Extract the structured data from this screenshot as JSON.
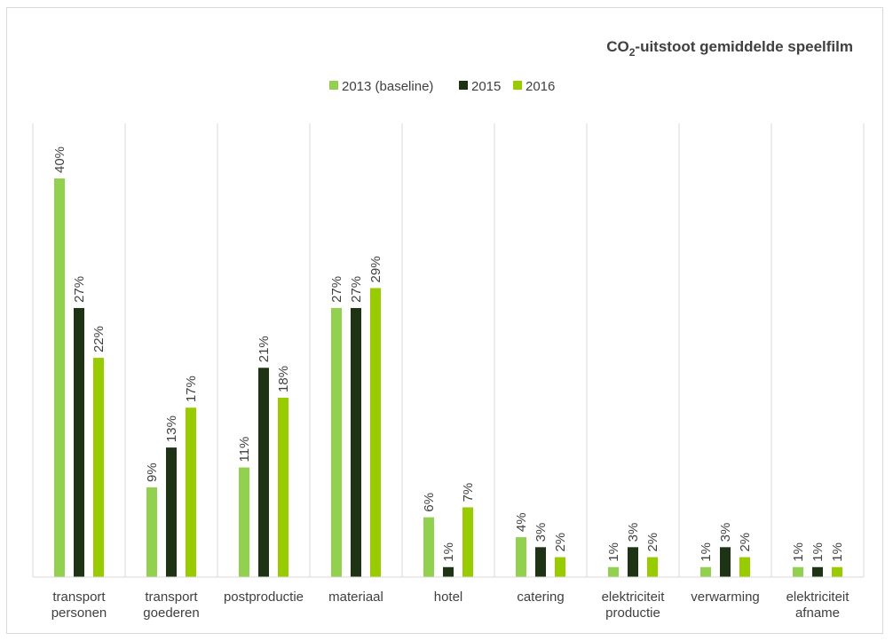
{
  "chart_data": {
    "type": "bar",
    "title": {
      "prefix": "CO",
      "subscript": "2",
      "suffix": "-uitstoot gemiddelde speelfilm"
    },
    "legend_position": "top",
    "categories": [
      [
        "transport",
        "personen"
      ],
      [
        "transport",
        "goederen"
      ],
      [
        "postproductie"
      ],
      [
        "materiaal"
      ],
      [
        "hotel"
      ],
      [
        "catering"
      ],
      [
        "elektriciteit",
        "productie"
      ],
      [
        "verwarming"
      ],
      [
        "elektriciteit",
        "afname"
      ]
    ],
    "series": [
      {
        "name": "2013 (baseline)",
        "color": "#92d050",
        "values": [
          40,
          9,
          11,
          27,
          6,
          4,
          1,
          1,
          1
        ],
        "labels": [
          "40%",
          "9%",
          "11%",
          "27%",
          "6%",
          "4%",
          "1%",
          "1%",
          "1%"
        ]
      },
      {
        "name": "2015",
        "color": "#1e3214",
        "values": [
          27,
          13,
          21,
          27,
          1,
          3,
          3,
          3,
          1
        ],
        "labels": [
          "27%",
          "13%",
          "21%",
          "27%",
          "1%",
          "3%",
          "3%",
          "3%",
          "1%"
        ]
      },
      {
        "name": "2016",
        "color": "#99cc00",
        "values": [
          22,
          17,
          18,
          29,
          7,
          2,
          2,
          2,
          1
        ],
        "labels": [
          "22%",
          "17%",
          "18%",
          "29%",
          "7%",
          "2%",
          "2%",
          "2%",
          "1%"
        ]
      }
    ],
    "ylim": [
      0,
      40
    ],
    "gridlines": "vertical category separators",
    "xlabel": "",
    "ylabel": ""
  }
}
